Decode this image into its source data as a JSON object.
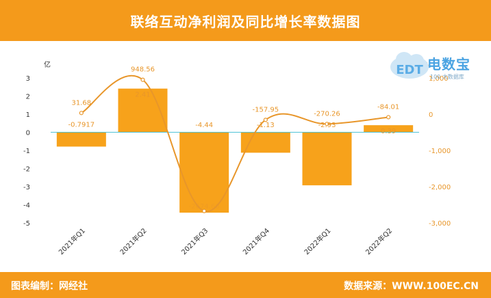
{
  "header": {
    "title": "联络互动净利润及同比增长率数据图"
  },
  "footer": {
    "left": "图表编制：网经社",
    "right": "数据来源：WWW.100EC.CN"
  },
  "logo": {
    "brand": "电数宝",
    "sub": "100 大数据库",
    "cloud_text": "EDT"
  },
  "colors": {
    "bar": "#f7a21b",
    "line": "#e8962a",
    "header": "#f49a1b",
    "zero_line": "#4fc3d6"
  },
  "chart_data": {
    "type": "bar",
    "categories": [
      "2021年Q1",
      "2021年Q2",
      "2021年Q3",
      "2021年Q4",
      "2022年Q1",
      "2022年Q2"
    ],
    "series": [
      {
        "values": [
          -0.7917,
          2.41,
          -4.44,
          -1.13,
          -2.93,
          0.39
        ],
        "labels": [
          "-0.7917",
          "2.41",
          "-4.44",
          "-1.13",
          "-2.93",
          "0.39"
        ],
        "axis": "left",
        "mark": "bar"
      },
      {
        "values": [
          31.68,
          948.56,
          -2674.66,
          -157.95,
          -270.26,
          -84.01
        ],
        "labels": [
          "31.68",
          "948.56",
          "-2674.66",
          "-157.95",
          "-270.26",
          "-84.01"
        ],
        "axis": "right",
        "mark": "line"
      }
    ],
    "y_left": {
      "unit": "亿",
      "ylim": [
        -5,
        3
      ],
      "ticks": [
        "3",
        "2",
        "1",
        "0",
        "-1",
        "-2",
        "-3",
        "-4",
        "-5"
      ]
    },
    "y_right": {
      "unit": "%",
      "ylim": [
        -3000,
        1000
      ],
      "ticks": [
        "1,000",
        "0",
        "-1,000",
        "-2,000",
        "-3,000"
      ]
    },
    "grid": false,
    "legend": "none"
  }
}
